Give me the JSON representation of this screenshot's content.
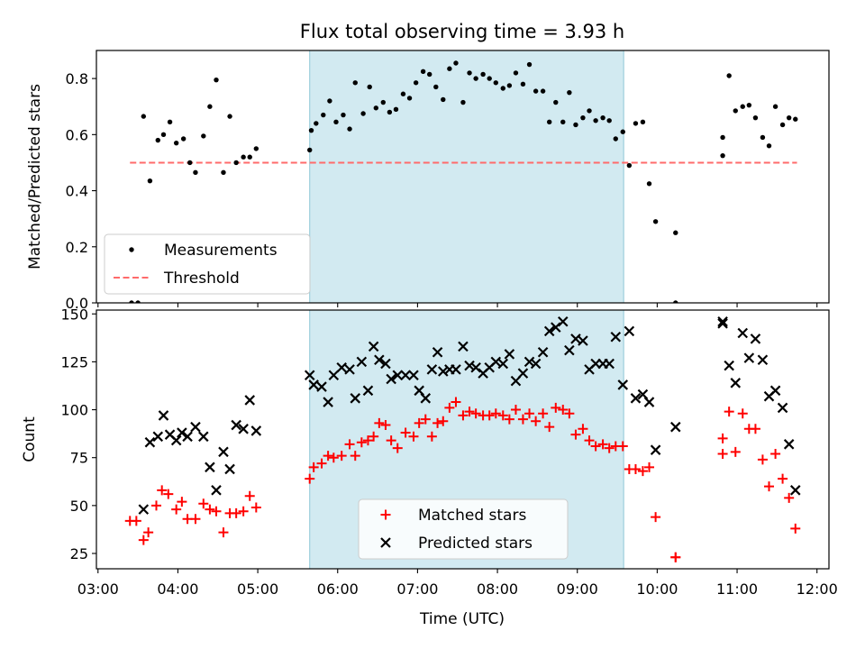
{
  "figure": {
    "title": "Flux total observing time = 3.93 h",
    "xlabel": "Time (UTC)",
    "x_ticks": [
      "03:00",
      "04:00",
      "05:00",
      "06:00",
      "07:00",
      "08:00",
      "09:00",
      "10:00",
      "11:00",
      "12:00"
    ],
    "x_tick_hours": [
      3,
      4,
      5,
      6,
      7,
      8,
      9,
      10,
      11,
      12
    ],
    "xlim_hours": [
      2.98,
      12.15
    ],
    "shaded_band_hours": [
      5.65,
      9.58
    ],
    "colors": {
      "shade": "#add8e6",
      "measurement": "#000000",
      "threshold": "#ff6b6b",
      "matched": "#ff0000",
      "predicted": "#000000"
    }
  },
  "chart_data": [
    {
      "type": "scatter",
      "title": "Flux total observing time = 3.93 h",
      "xlabel": "",
      "ylabel": "Matched/Predicted stars",
      "ylim": [
        0,
        0.9
      ],
      "y_ticks": [
        "0.0",
        "0.2",
        "0.4",
        "0.6",
        "0.8"
      ],
      "y_tick_values": [
        0,
        0.2,
        0.4,
        0.6,
        0.8
      ],
      "legend_position": "lower-left",
      "threshold": {
        "name": "Threshold",
        "value": 0.5,
        "x_range_hours": [
          3.4,
          11.75
        ],
        "style": "dashed"
      },
      "series": [
        {
          "name": "Measurements",
          "marker": "dot",
          "x_hours": [
            3.42,
            3.5,
            3.57,
            3.65,
            3.75,
            3.82,
            3.9,
            3.98,
            4.07,
            4.15,
            4.22,
            4.32,
            4.4,
            4.48,
            4.57,
            4.65,
            4.73,
            4.82,
            4.9,
            4.98,
            5.65,
            5.67,
            5.73,
            5.82,
            5.9,
            5.98,
            6.07,
            6.15,
            6.22,
            6.32,
            6.4,
            6.48,
            6.57,
            6.65,
            6.73,
            6.82,
            6.9,
            6.98,
            7.07,
            7.15,
            7.23,
            7.32,
            7.4,
            7.48,
            7.57,
            7.65,
            7.73,
            7.82,
            7.9,
            7.98,
            8.07,
            8.15,
            8.23,
            8.32,
            8.4,
            8.48,
            8.57,
            8.65,
            8.73,
            8.82,
            8.9,
            8.98,
            9.07,
            9.15,
            9.23,
            9.32,
            9.4,
            9.48,
            9.57,
            9.65,
            9.73,
            9.82,
            9.9,
            9.98,
            10.23,
            10.23,
            10.82,
            10.82,
            10.9,
            10.98,
            11.07,
            11.15,
            11.23,
            11.32,
            11.4,
            11.48,
            11.57,
            11.65,
            11.73
          ],
          "y": [
            0.0,
            0.0,
            0.665,
            0.435,
            0.58,
            0.6,
            0.645,
            0.57,
            0.585,
            0.5,
            0.465,
            0.595,
            0.7,
            0.795,
            0.465,
            0.665,
            0.5,
            0.52,
            0.52,
            0.55,
            0.545,
            0.615,
            0.64,
            0.67,
            0.72,
            0.645,
            0.67,
            0.62,
            0.785,
            0.675,
            0.77,
            0.695,
            0.715,
            0.68,
            0.69,
            0.745,
            0.73,
            0.785,
            0.825,
            0.815,
            0.77,
            0.725,
            0.835,
            0.855,
            0.715,
            0.82,
            0.8,
            0.815,
            0.8,
            0.785,
            0.765,
            0.775,
            0.82,
            0.78,
            0.85,
            0.755,
            0.755,
            0.645,
            0.715,
            0.645,
            0.75,
            0.635,
            0.66,
            0.685,
            0.65,
            0.66,
            0.65,
            0.585,
            0.61,
            0.49,
            0.64,
            0.645,
            0.425,
            0.29,
            0.0,
            0.25,
            0.525,
            0.59,
            0.81,
            0.685,
            0.7,
            0.705,
            0.66,
            0.59,
            0.56,
            0.7,
            0.635,
            0.66,
            0.655
          ]
        }
      ]
    },
    {
      "type": "scatter",
      "title": "",
      "xlabel": "Time (UTC)",
      "ylabel": "Count",
      "ylim": [
        17,
        152
      ],
      "y_ticks": [
        "25",
        "50",
        "75",
        "100",
        "125",
        "150"
      ],
      "y_tick_values": [
        25,
        50,
        75,
        100,
        125,
        150
      ],
      "legend_position": "lower-center",
      "series": [
        {
          "name": "Matched stars",
          "marker": "plus",
          "x_hours": [
            3.4,
            3.48,
            3.57,
            3.63,
            3.73,
            3.8,
            3.88,
            3.98,
            4.05,
            4.12,
            4.22,
            4.32,
            4.4,
            4.48,
            4.57,
            4.65,
            4.73,
            4.82,
            4.9,
            4.98,
            5.65,
            5.7,
            5.8,
            5.88,
            5.95,
            6.05,
            6.15,
            6.22,
            6.3,
            6.38,
            6.45,
            6.52,
            6.6,
            6.67,
            6.75,
            6.85,
            6.95,
            7.02,
            7.1,
            7.18,
            7.25,
            7.32,
            7.4,
            7.48,
            7.57,
            7.65,
            7.73,
            7.82,
            7.9,
            7.98,
            8.07,
            8.15,
            8.23,
            8.32,
            8.4,
            8.48,
            8.57,
            8.65,
            8.73,
            8.82,
            8.9,
            8.98,
            9.07,
            9.15,
            9.23,
            9.32,
            9.4,
            9.48,
            9.57,
            9.65,
            9.73,
            9.82,
            9.9,
            9.98,
            10.23,
            10.23,
            10.82,
            10.82,
            10.9,
            10.98,
            11.07,
            11.15,
            11.23,
            11.32,
            11.4,
            11.48,
            11.57,
            11.65,
            11.73
          ],
          "y": [
            42,
            42,
            32,
            36,
            50,
            58,
            56,
            48,
            52,
            43,
            43,
            51,
            48,
            47,
            36,
            46,
            46,
            47,
            55,
            49,
            64,
            70,
            72,
            76,
            75,
            76,
            82,
            76,
            83,
            84,
            86,
            93,
            92,
            84,
            80,
            88,
            86,
            93,
            95,
            86,
            93,
            94,
            101,
            104,
            97,
            99,
            98,
            97,
            97,
            98,
            97,
            95,
            100,
            95,
            98,
            94,
            98,
            91,
            101,
            100,
            98,
            87,
            90,
            84,
            81,
            82,
            80,
            81,
            81,
            69,
            69,
            68,
            70,
            44,
            23,
            23,
            77,
            85,
            99,
            78,
            98,
            90,
            90,
            74,
            60,
            77,
            64,
            54,
            38
          ]
        },
        {
          "name": "Predicted stars",
          "marker": "x",
          "x_hours": [
            3.57,
            3.65,
            3.75,
            3.82,
            3.9,
            3.98,
            4.05,
            4.12,
            4.22,
            4.32,
            4.4,
            4.48,
            4.57,
            4.65,
            4.73,
            4.82,
            4.9,
            4.98,
            5.65,
            5.7,
            5.8,
            5.88,
            5.95,
            6.05,
            6.15,
            6.22,
            6.3,
            6.38,
            6.45,
            6.52,
            6.6,
            6.67,
            6.75,
            6.85,
            6.95,
            7.02,
            7.1,
            7.18,
            7.25,
            7.32,
            7.4,
            7.48,
            7.57,
            7.65,
            7.73,
            7.82,
            7.9,
            7.98,
            8.07,
            8.15,
            8.23,
            8.32,
            8.4,
            8.48,
            8.57,
            8.65,
            8.73,
            8.82,
            8.9,
            8.98,
            9.07,
            9.15,
            9.23,
            9.32,
            9.4,
            9.48,
            9.57,
            9.65,
            9.73,
            9.82,
            9.9,
            9.98,
            10.23,
            10.82,
            10.82,
            10.9,
            10.98,
            11.07,
            11.15,
            11.23,
            11.32,
            11.4,
            11.48,
            11.57,
            11.65,
            11.73
          ],
          "y": [
            48,
            83,
            86,
            97,
            87,
            84,
            88,
            86,
            91,
            86,
            70,
            58,
            78,
            69,
            92,
            90,
            105,
            89,
            118,
            113,
            112,
            104,
            118,
            122,
            121,
            106,
            125,
            110,
            133,
            126,
            124,
            116,
            118,
            118,
            118,
            110,
            106,
            121,
            130,
            120,
            121,
            121,
            133,
            123,
            122,
            119,
            122,
            125,
            124,
            129,
            115,
            119,
            125,
            124,
            130,
            141,
            143,
            146,
            131,
            137,
            136,
            121,
            124,
            124,
            124,
            138,
            113,
            141,
            106,
            108,
            104,
            79,
            91,
            145,
            146,
            123,
            114,
            140,
            127,
            137,
            126,
            107,
            110,
            101,
            82,
            58
          ]
        }
      ]
    }
  ]
}
